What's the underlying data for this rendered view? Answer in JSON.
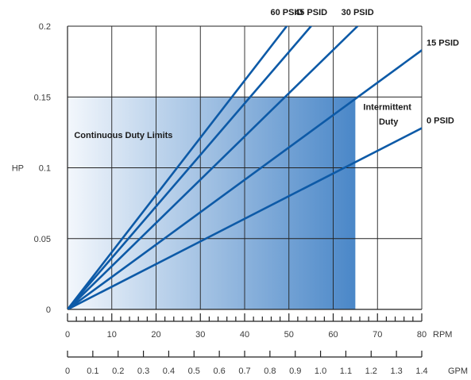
{
  "chart_data": {
    "type": "line",
    "title": "",
    "ylabel": "HP",
    "x_units": {
      "rpm": "RPM",
      "gpm": "GPM"
    },
    "xlim": [
      0,
      80
    ],
    "ylim": [
      0,
      0.2
    ],
    "x_ticks": [
      "0",
      "10",
      "20",
      "30",
      "40",
      "50",
      "60",
      "70",
      "80"
    ],
    "y_ticks": [
      "0",
      "0.05",
      "0.1",
      "0.15",
      "0.2"
    ],
    "gpm_ticks": [
      "0",
      "0.1",
      "0.2",
      "0.3",
      "0.4",
      "0.5",
      "0.6",
      "0.7",
      "0.8",
      "0.9",
      "1.0",
      "1.1",
      "1.2",
      "1.3",
      "1.4"
    ],
    "grid": true,
    "continuous_duty_region": {
      "label": "Continuous Duty Limits",
      "x": [
        0,
        65
      ],
      "y": [
        0,
        0.15
      ]
    },
    "intermittent_label": [
      "Intermittent",
      "Duty"
    ],
    "colors": {
      "line": "#0d5aa7",
      "region_start": "#f3f7fc",
      "region_end": "#4a87c8"
    },
    "series": [
      {
        "name": "60 PSID",
        "x": [
          0,
          49.5
        ],
        "y": [
          0,
          0.2
        ]
      },
      {
        "name": "45 PSID",
        "x": [
          0,
          55
        ],
        "y": [
          0,
          0.2
        ]
      },
      {
        "name": "30 PSID",
        "x": [
          0,
          65.5
        ],
        "y": [
          0,
          0.2
        ]
      },
      {
        "name": "15 PSID",
        "x": [
          0,
          80
        ],
        "y": [
          0,
          0.183
        ]
      },
      {
        "name": "0 PSID",
        "x": [
          0,
          80
        ],
        "y": [
          0,
          0.128
        ]
      }
    ]
  }
}
